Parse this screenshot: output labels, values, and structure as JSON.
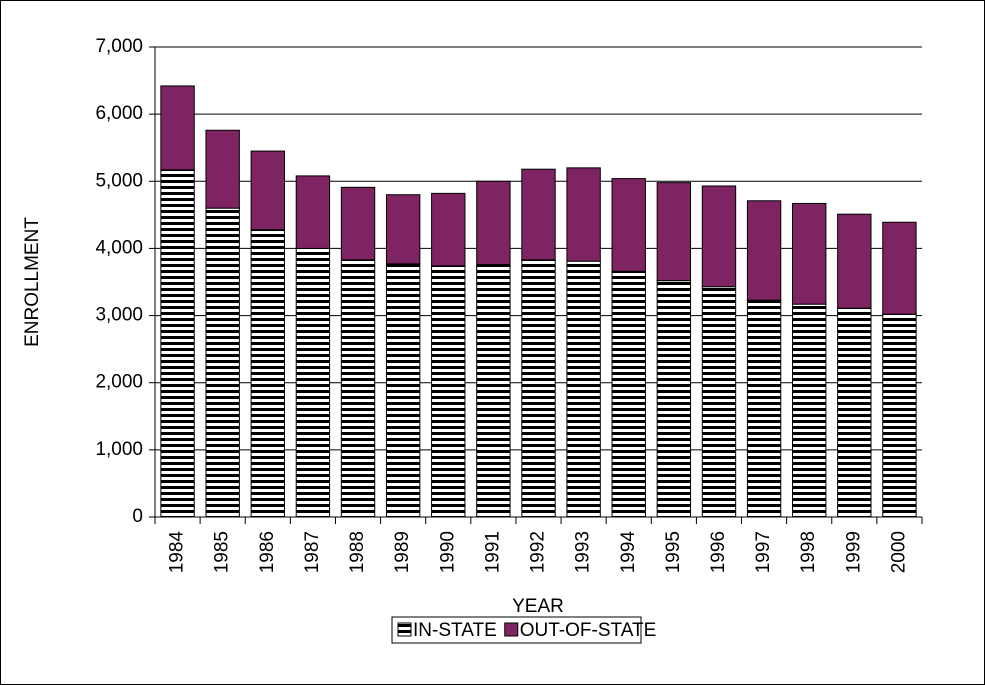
{
  "chart_data": {
    "type": "stacked_bar",
    "x_label": "YEAR",
    "y_label": "ENROLLMENT",
    "categories": [
      "1984",
      "1985",
      "1986",
      "1987",
      "1988",
      "1989",
      "1990",
      "1991",
      "1992",
      "1993",
      "1994",
      "1995",
      "1996",
      "1997",
      "1998",
      "1999",
      "2000"
    ],
    "series": [
      {
        "name": "IN-STATE",
        "color": "#000000",
        "pattern": "horizontal-stripes",
        "values": [
          5170,
          4600,
          4280,
          4000,
          3830,
          3770,
          3740,
          3760,
          3830,
          3810,
          3660,
          3520,
          3430,
          3230,
          3170,
          3110,
          3020
        ]
      },
      {
        "name": "OUT-OF-STATE",
        "color": "#7f2462",
        "values": [
          1250,
          1160,
          1170,
          1080,
          1080,
          1030,
          1080,
          1240,
          1350,
          1390,
          1380,
          1460,
          1500,
          1480,
          1500,
          1400,
          1370
        ]
      }
    ],
    "ylim": [
      0,
      7000
    ],
    "yticks": [
      0,
      {
        "value": 1000,
        "label": "1,000"
      },
      {
        "value": 2000,
        "label": "2,000"
      },
      {
        "value": 3000,
        "label": "3,000"
      },
      {
        "value": 4000,
        "label": "4,000"
      },
      {
        "value": 5000,
        "label": "5,000"
      },
      {
        "value": 6000,
        "label": "6,000"
      },
      {
        "value": 7000,
        "label": "7,000"
      }
    ],
    "grid": true,
    "legend": "bottom"
  }
}
